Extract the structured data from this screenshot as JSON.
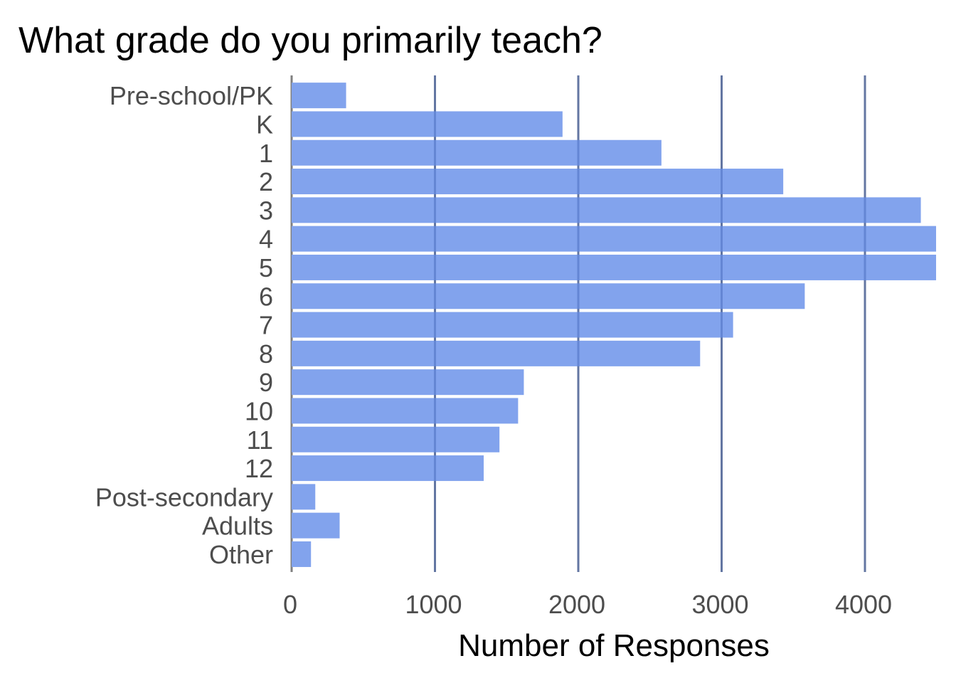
{
  "colors": {
    "bar": "#82a3ed",
    "grid": "#7f7f7f",
    "label": "#4d4d4d",
    "title": "#000000",
    "background": "#ffffff"
  },
  "chart_data": {
    "type": "bar",
    "orientation": "horizontal",
    "title": "What grade do you primarily teach?",
    "xlabel": "Number of Responses",
    "ylabel": "",
    "categories": [
      "Pre-school/PK",
      "K",
      "1",
      "2",
      "3",
      "4",
      "5",
      "6",
      "7",
      "8",
      "9",
      "10",
      "11",
      "12",
      "Post-secondary",
      "Adults",
      "Other"
    ],
    "values": [
      380,
      1890,
      2580,
      3430,
      4390,
      4500,
      4500,
      3580,
      3080,
      2850,
      1620,
      1580,
      1450,
      1340,
      165,
      335,
      135
    ],
    "xlim": [
      0,
      4500
    ],
    "xticks": [
      0,
      1000,
      2000,
      3000,
      4000
    ],
    "xtick_labels": [
      "0",
      "1000",
      "2000",
      "3000",
      "4000"
    ],
    "grid": "vertical",
    "legend": "none"
  }
}
